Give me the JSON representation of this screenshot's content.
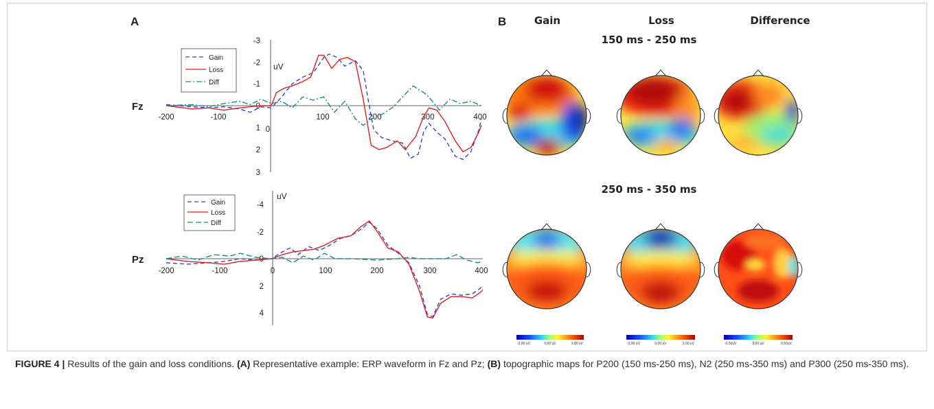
{
  "panels": {
    "a_label": "A",
    "b_label": "B"
  },
  "erp": [
    {
      "channel": "Fz",
      "unit": "uV",
      "x_ticks": [
        -200,
        -100,
        0,
        100,
        200,
        300,
        400
      ],
      "x_tick_labels": [
        "-200",
        "-100",
        "0",
        "100",
        "200",
        "300",
        "400"
      ],
      "y_ticks": [
        -3,
        -2,
        -1,
        0,
        1,
        2,
        3
      ],
      "y_tick_labels": [
        "-3",
        "-2",
        "-1",
        "0",
        "1",
        "2",
        "3"
      ],
      "xlim": [
        -200,
        400
      ],
      "ylim": [
        -3,
        3
      ],
      "legend": [
        "Gain",
        "Loss",
        "Diff"
      ],
      "series": [
        {
          "name": "Gain",
          "color": "#3344cc",
          "dash": "6,4",
          "points": [
            [
              -200,
              -0.05
            ],
            [
              -150,
              0.05
            ],
            [
              -120,
              0.1
            ],
            [
              -90,
              0.05
            ],
            [
              -60,
              0.15
            ],
            [
              -40,
              0.3
            ],
            [
              -20,
              0.05
            ],
            [
              0,
              0.1
            ],
            [
              20,
              -0.4
            ],
            [
              40,
              -1.0
            ],
            [
              60,
              -1.3
            ],
            [
              80,
              -1.5
            ],
            [
              100,
              -2.2
            ],
            [
              110,
              -2.35
            ],
            [
              125,
              -2.2
            ],
            [
              140,
              -1.8
            ],
            [
              160,
              -2.05
            ],
            [
              175,
              -1.6
            ],
            [
              185,
              -0.2
            ],
            [
              195,
              1.1
            ],
            [
              210,
              1.45
            ],
            [
              230,
              1.6
            ],
            [
              250,
              1.7
            ],
            [
              265,
              2.4
            ],
            [
              280,
              2.2
            ],
            [
              290,
              1.2
            ],
            [
              300,
              0.8
            ],
            [
              315,
              1.2
            ],
            [
              330,
              1.5
            ],
            [
              350,
              2.3
            ],
            [
              365,
              2.45
            ],
            [
              380,
              2.1
            ],
            [
              395,
              1.1
            ],
            [
              400,
              0.6
            ]
          ]
        },
        {
          "name": "Loss",
          "color": "#e02020",
          "dash": "",
          "points": [
            [
              -200,
              0.0
            ],
            [
              -150,
              0.15
            ],
            [
              -120,
              0.1
            ],
            [
              -90,
              0.2
            ],
            [
              -60,
              0.1
            ],
            [
              -40,
              0.05
            ],
            [
              -20,
              0.0
            ],
            [
              0,
              0.0
            ],
            [
              10,
              -0.6
            ],
            [
              25,
              -0.8
            ],
            [
              40,
              -0.9
            ],
            [
              60,
              -1.1
            ],
            [
              75,
              -1.3
            ],
            [
              90,
              -2.3
            ],
            [
              100,
              -2.3
            ],
            [
              115,
              -1.7
            ],
            [
              130,
              -2.1
            ],
            [
              145,
              -2.2
            ],
            [
              160,
              -2.0
            ],
            [
              175,
              -0.3
            ],
            [
              190,
              1.8
            ],
            [
              205,
              2.0
            ],
            [
              220,
              1.9
            ],
            [
              240,
              1.6
            ],
            [
              255,
              2.0
            ],
            [
              275,
              1.4
            ],
            [
              290,
              0.5
            ],
            [
              300,
              0.1
            ],
            [
              315,
              0.2
            ],
            [
              330,
              0.7
            ],
            [
              350,
              1.6
            ],
            [
              365,
              2.1
            ],
            [
              380,
              1.9
            ],
            [
              395,
              1.2
            ],
            [
              400,
              0.9
            ]
          ]
        },
        {
          "name": "Diff",
          "color": "#1a8a8a",
          "dash": "8,3,2,3",
          "points": [
            [
              -200,
              0.0
            ],
            [
              -150,
              -0.05
            ],
            [
              -120,
              0.05
            ],
            [
              -90,
              -0.1
            ],
            [
              -60,
              -0.2
            ],
            [
              -40,
              -0.05
            ],
            [
              -20,
              -0.3
            ],
            [
              0,
              -0.1
            ],
            [
              20,
              -0.2
            ],
            [
              40,
              0.1
            ],
            [
              60,
              -0.4
            ],
            [
              80,
              -0.25
            ],
            [
              100,
              -0.4
            ],
            [
              120,
              0.3
            ],
            [
              140,
              -0.2
            ],
            [
              160,
              0.6
            ],
            [
              175,
              0.9
            ],
            [
              190,
              0.6
            ],
            [
              210,
              0.4
            ],
            [
              230,
              0.1
            ],
            [
              250,
              -0.4
            ],
            [
              270,
              -0.9
            ],
            [
              290,
              -0.6
            ],
            [
              300,
              -0.4
            ],
            [
              320,
              0.2
            ],
            [
              340,
              -0.3
            ],
            [
              360,
              -0.1
            ],
            [
              380,
              -0.2
            ],
            [
              400,
              0.0
            ]
          ]
        }
      ]
    },
    {
      "channel": "Pz",
      "unit": "uV",
      "x_ticks": [
        -200,
        -100,
        0,
        100,
        200,
        300,
        400
      ],
      "x_tick_labels": [
        "-200",
        "-100",
        "0",
        "100",
        "200",
        "300",
        "400"
      ],
      "y_ticks": [
        -4,
        -2,
        0,
        2,
        4
      ],
      "y_tick_labels": [
        "-4",
        "-2",
        "0",
        "2",
        "4"
      ],
      "xlim": [
        -200,
        400
      ],
      "ylim": [
        -5,
        5
      ],
      "legend": [
        "Gain",
        "Loss",
        "Diff"
      ],
      "series": [
        {
          "name": "Gain",
          "color": "#3344cc",
          "dash": "6,4",
          "points": [
            [
              -200,
              0.3
            ],
            [
              -160,
              0.4
            ],
            [
              -120,
              0.3
            ],
            [
              -90,
              0.2
            ],
            [
              -60,
              0.0
            ],
            [
              -30,
              0.1
            ],
            [
              0,
              0.0
            ],
            [
              20,
              -0.5
            ],
            [
              35,
              -0.8
            ],
            [
              50,
              -0.3
            ],
            [
              70,
              -0.9
            ],
            [
              90,
              -0.6
            ],
            [
              110,
              -1.0
            ],
            [
              130,
              -1.5
            ],
            [
              150,
              -1.7
            ],
            [
              170,
              -2.2
            ],
            [
              185,
              -2.7
            ],
            [
              200,
              -2.2
            ],
            [
              220,
              -1.0
            ],
            [
              240,
              -0.4
            ],
            [
              260,
              0.3
            ],
            [
              280,
              2.0
            ],
            [
              295,
              4.1
            ],
            [
              305,
              4.3
            ],
            [
              320,
              3.0
            ],
            [
              340,
              2.6
            ],
            [
              360,
              2.7
            ],
            [
              380,
              2.6
            ],
            [
              395,
              2.2
            ],
            [
              400,
              2.0
            ]
          ]
        },
        {
          "name": "Loss",
          "color": "#e02020",
          "dash": "",
          "points": [
            [
              -200,
              0.0
            ],
            [
              -160,
              0.2
            ],
            [
              -120,
              0.3
            ],
            [
              -90,
              0.4
            ],
            [
              -60,
              0.2
            ],
            [
              -30,
              0.1
            ],
            [
              0,
              0.0
            ],
            [
              20,
              -0.3
            ],
            [
              40,
              -0.5
            ],
            [
              60,
              -0.6
            ],
            [
              80,
              -0.7
            ],
            [
              100,
              -1.0
            ],
            [
              125,
              -1.5
            ],
            [
              150,
              -1.7
            ],
            [
              170,
              -2.4
            ],
            [
              185,
              -2.8
            ],
            [
              200,
              -2.0
            ],
            [
              220,
              -0.8
            ],
            [
              240,
              -0.5
            ],
            [
              260,
              0.4
            ],
            [
              280,
              2.4
            ],
            [
              295,
              4.3
            ],
            [
              305,
              4.4
            ],
            [
              320,
              3.3
            ],
            [
              340,
              2.8
            ],
            [
              360,
              2.8
            ],
            [
              380,
              2.9
            ],
            [
              395,
              2.5
            ],
            [
              400,
              2.3
            ]
          ]
        },
        {
          "name": "Diff",
          "color": "#1a8a8a",
          "dash": "8,4",
          "points": [
            [
              -200,
              0.0
            ],
            [
              -170,
              -0.2
            ],
            [
              -140,
              0.1
            ],
            [
              -110,
              -0.3
            ],
            [
              -80,
              -0.2
            ],
            [
              -60,
              -0.4
            ],
            [
              -30,
              -0.1
            ],
            [
              0,
              0.0
            ],
            [
              20,
              -0.1
            ],
            [
              40,
              0.3
            ],
            [
              60,
              -0.2
            ],
            [
              80,
              0.1
            ],
            [
              100,
              -0.4
            ],
            [
              120,
              0.0
            ],
            [
              150,
              0.0
            ],
            [
              200,
              0.1
            ],
            [
              240,
              0.0
            ],
            [
              260,
              -0.1
            ],
            [
              280,
              0.0
            ],
            [
              300,
              0.0
            ],
            [
              330,
              0.0
            ],
            [
              350,
              -0.3
            ],
            [
              370,
              0.1
            ],
            [
              390,
              0.3
            ],
            [
              400,
              0.2
            ]
          ]
        }
      ]
    }
  ],
  "topomaps": {
    "columns": [
      "Gain",
      "Loss",
      "Difference"
    ],
    "windows": [
      "150 ms - 250 ms",
      "250 ms - 350 ms"
    ],
    "colorbars": [
      {
        "min_label": "-3.00 uV",
        "mid_label": "0.00 uV",
        "max_label": "3.00 uV"
      },
      {
        "min_label": "-3.00 uV",
        "mid_label": "0.00 uV",
        "max_label": "3.00 uV"
      },
      {
        "min_label": "-0.50uV",
        "mid_label": "0.00 uV",
        "max_label": "0.50uV"
      }
    ]
  },
  "caption": {
    "figure_label": "FIGURE 4 |",
    "intro": " Results of the gain and loss conditions. ",
    "a_tag": "(A)",
    "a_text": " Representative example: ERP waveform in Fz and Pz; ",
    "b_tag": "(B)",
    "b_text": " topographic maps for P200 (150 ms-250 ms), N2 (250 ms-350 ms) and P300 (250 ms-350 ms)."
  }
}
